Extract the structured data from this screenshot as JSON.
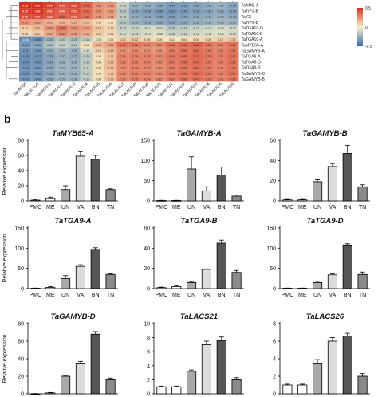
{
  "panel_b_label": "b",
  "heatmap": {
    "row_labels": [
      "TaAMS-A",
      "TaTIP2-B",
      "TaIGI",
      "TaTIP2-D",
      "TaTGA10-D",
      "TaTGA10-B",
      "TaTGA10-A",
      "TaMYB65-A",
      "TaGAMYB-A",
      "TaTGA9-A",
      "TaTGA9-D",
      "TaTGA9-B",
      "TaGAMYB-D",
      "TaGAMYB-B"
    ],
    "col_labels": [
      "TaLACS5",
      "TaLACS10",
      "TaLACS11",
      "TaLACS12",
      "TaLACS13",
      "TaLACS14",
      "TaLACS15",
      "TaLACS16",
      "TaLACS17",
      "TaLACS18",
      "TaLACS19",
      "TaLACS20",
      "TaLACS21",
      "TaLACS22",
      "TaLACS23",
      "TaLACS24",
      "TaLACS25",
      "TaLACS26"
    ],
    "scale_ticks": [
      "0.5",
      "0",
      "-0.5"
    ],
    "colors": {
      "high": "#d7301f",
      "mid": "#f5f0c8",
      "low": "#3a6db0"
    },
    "values": [
      [
        0.62,
        0.6,
        0.55,
        0.48,
        0.52,
        0.45,
        0.3,
        0.28,
        -0.15,
        -0.3,
        -0.32,
        -0.35,
        -0.4,
        -0.38,
        -0.36,
        -0.33,
        -0.3,
        -0.35
      ],
      [
        0.55,
        0.58,
        0.5,
        0.46,
        0.5,
        0.42,
        0.3,
        0.26,
        -0.2,
        -0.35,
        -0.38,
        -0.4,
        -0.42,
        -0.4,
        -0.38,
        -0.35,
        -0.33,
        -0.36
      ],
      [
        0.5,
        0.52,
        0.48,
        0.44,
        0.46,
        0.4,
        0.28,
        0.24,
        -0.18,
        -0.32,
        -0.34,
        -0.36,
        -0.38,
        -0.36,
        -0.34,
        -0.32,
        -0.3,
        -0.34
      ],
      [
        0.3,
        0.26,
        0.2,
        0.18,
        0.2,
        0.16,
        0.08,
        0.05,
        -0.22,
        -0.3,
        -0.33,
        -0.34,
        -0.36,
        -0.34,
        -0.32,
        -0.3,
        -0.28,
        -0.3
      ],
      [
        0.12,
        0.17,
        0.28,
        0.38,
        0.3,
        0.27,
        0.15,
        0.1,
        -0.17,
        -0.15,
        -0.11,
        -0.12,
        -0.2,
        -0.18,
        -0.15,
        -0.13,
        -0.1,
        -0.12
      ],
      [
        0.08,
        0.12,
        0.22,
        0.32,
        0.26,
        0.22,
        0.12,
        0.08,
        -0.12,
        -0.14,
        -0.1,
        -0.08,
        -0.15,
        -0.14,
        -0.12,
        -0.1,
        -0.08,
        -0.1
      ],
      [
        -0.46,
        -0.45,
        -0.3,
        -0.2,
        -0.25,
        -0.18,
        -0.05,
        0.05,
        0.1,
        0.12,
        0.08,
        0.05,
        0.02,
        0.04,
        0.06,
        0.08,
        0.1,
        0.12
      ],
      [
        -0.4,
        -0.35,
        -0.22,
        -0.15,
        -0.2,
        0.05,
        0.19,
        0.25,
        0.4,
        0.38,
        0.35,
        0.33,
        0.4,
        0.42,
        0.44,
        0.38,
        0.36,
        0.4
      ],
      [
        -0.42,
        -0.4,
        -0.3,
        -0.25,
        -0.3,
        -0.1,
        0.1,
        0.18,
        0.3,
        0.32,
        0.3,
        0.28,
        0.35,
        0.38,
        0.4,
        0.36,
        0.34,
        0.38
      ],
      [
        -0.45,
        -0.42,
        -0.35,
        -0.3,
        -0.32,
        -0.2,
        0.05,
        0.15,
        0.34,
        0.36,
        0.35,
        0.33,
        0.38,
        0.4,
        0.42,
        0.38,
        0.36,
        0.4
      ],
      [
        -0.44,
        -0.42,
        -0.34,
        -0.28,
        -0.3,
        -0.18,
        0.06,
        0.16,
        0.33,
        0.35,
        0.34,
        0.32,
        0.37,
        0.39,
        0.41,
        0.37,
        0.35,
        0.39
      ],
      [
        -0.43,
        -0.41,
        -0.33,
        -0.27,
        -0.29,
        -0.17,
        0.07,
        0.17,
        0.32,
        0.34,
        0.33,
        0.31,
        0.36,
        0.38,
        0.4,
        0.36,
        0.34,
        0.38
      ],
      [
        -0.44,
        -0.42,
        -0.35,
        -0.3,
        -0.31,
        -0.19,
        0.05,
        0.15,
        0.34,
        0.36,
        0.35,
        0.33,
        0.38,
        0.4,
        0.42,
        0.38,
        0.36,
        0.4
      ],
      [
        -0.42,
        -0.4,
        -0.33,
        -0.28,
        -0.3,
        -0.18,
        0.06,
        0.16,
        0.33,
        0.35,
        0.34,
        0.32,
        0.37,
        0.39,
        0.41,
        0.37,
        0.35,
        0.39
      ]
    ]
  },
  "charts": [
    {
      "title": "TaMYB65-A",
      "ylabel": "Relative expression",
      "categories": [
        "PMC",
        "ME",
        "UN",
        "VA",
        "BN",
        "TN"
      ],
      "yticks": [
        0,
        20,
        40,
        60,
        80
      ],
      "ylim": [
        0,
        80
      ],
      "values": [
        1,
        3,
        15,
        59,
        55,
        15
      ],
      "errors": [
        0.5,
        2,
        5,
        6,
        5,
        1
      ]
    },
    {
      "title": "TaGAMYB-A",
      "ylabel": "",
      "categories": [
        "PMC",
        "ME",
        "UN",
        "VA",
        "BN",
        "TN"
      ],
      "yticks": [
        0,
        50,
        100,
        150
      ],
      "ylim": [
        0,
        150
      ],
      "values": [
        1,
        1,
        79,
        25,
        64,
        12
      ],
      "errors": [
        0.5,
        0.5,
        30,
        10,
        20,
        3
      ]
    },
    {
      "title": "TaGAMYB-B",
      "ylabel": "",
      "categories": [
        "PMC",
        "ME",
        "UN",
        "VA",
        "BN",
        "TN"
      ],
      "yticks": [
        0,
        20,
        40,
        60
      ],
      "ylim": [
        0,
        60
      ],
      "values": [
        1,
        1,
        19,
        34,
        47,
        14
      ],
      "errors": [
        0.5,
        0.5,
        2,
        3,
        8,
        2
      ]
    },
    {
      "title": "TaTGA9-A",
      "ylabel": "Relative expression",
      "categories": [
        "PMC",
        "ME",
        "UN",
        "VA",
        "BN",
        "TN"
      ],
      "yticks": [
        0,
        50,
        100,
        150
      ],
      "ylim": [
        0,
        150
      ],
      "values": [
        1,
        3,
        25,
        55,
        97,
        35
      ],
      "errors": [
        0.5,
        2,
        7,
        4,
        4,
        2
      ]
    },
    {
      "title": "TaTGA9-B",
      "ylabel": "",
      "categories": [
        "PMC",
        "ME",
        "UN",
        "VA",
        "BN",
        "TN"
      ],
      "yticks": [
        0,
        20,
        40,
        60
      ],
      "ylim": [
        0,
        60
      ],
      "values": [
        1,
        2,
        6,
        19,
        45,
        16
      ],
      "errors": [
        0.5,
        1,
        1,
        0.5,
        3,
        2
      ]
    },
    {
      "title": "TaTGA9-D",
      "ylabel": "",
      "categories": [
        "PMC",
        "ME",
        "UN",
        "VA",
        "BN",
        "TN"
      ],
      "yticks": [
        0,
        50,
        100,
        150
      ],
      "ylim": [
        0,
        150
      ],
      "values": [
        1,
        1,
        15,
        34,
        108,
        35
      ],
      "errors": [
        0.5,
        0.5,
        3,
        3,
        3,
        6
      ]
    },
    {
      "title": "TaGAMYB-D",
      "ylabel": "Relative expression",
      "categories": [
        "PMC",
        "ME",
        "UN",
        "VA",
        "BN",
        "TN"
      ],
      "yticks": [
        0,
        20,
        40,
        60,
        80
      ],
      "ylim": [
        0,
        80
      ],
      "values": [
        0,
        1,
        20,
        35,
        68,
        16
      ],
      "errors": [
        0.3,
        0.5,
        1,
        2,
        3,
        2
      ]
    },
    {
      "title": "TaLACS21",
      "ylabel": "",
      "categories": [
        "PMC",
        "ME",
        "UN",
        "VA",
        "BN",
        "TN"
      ],
      "yticks": [
        0,
        2,
        4,
        6,
        8,
        10
      ],
      "ylim": [
        0,
        10
      ],
      "values": [
        1,
        1,
        3.2,
        7,
        7.6,
        2
      ],
      "errors": [
        0.1,
        0.1,
        0.2,
        0.5,
        0.5,
        0.3
      ]
    },
    {
      "title": "TaLACS26",
      "ylabel": "",
      "categories": [
        "PMC",
        "ME",
        "UN",
        "VA",
        "BN",
        "TN"
      ],
      "yticks": [
        0,
        2,
        4,
        6,
        8
      ],
      "ylim": [
        0,
        8
      ],
      "values": [
        1,
        1,
        3.5,
        6,
        6.6,
        2
      ],
      "errors": [
        0.1,
        0.1,
        0.4,
        0.4,
        0.3,
        0.3
      ]
    }
  ],
  "bar_colors": [
    "#ffffff",
    "#ffffff",
    "#a9a9a9",
    "#dcdcdc",
    "#555555",
    "#8a8a8a"
  ]
}
